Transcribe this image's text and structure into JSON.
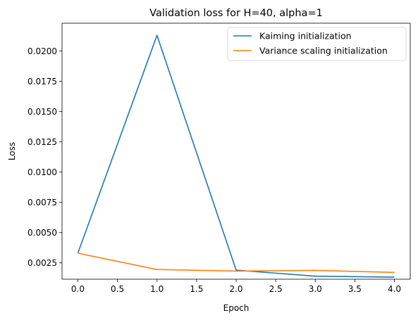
{
  "chart_data": {
    "type": "line",
    "title": "Validation loss for H=40, alpha=1",
    "xlabel": "Epoch",
    "ylabel": "Loss",
    "x": [
      0,
      1,
      2,
      3,
      4
    ],
    "xlim": [
      -0.2,
      4.2
    ],
    "ylim": [
      0.00115,
      0.0223
    ],
    "xticks": [
      0.0,
      0.5,
      1.0,
      1.5,
      2.0,
      2.5,
      3.0,
      3.5,
      4.0
    ],
    "xtick_labels": [
      "0.0",
      "0.5",
      "1.0",
      "1.5",
      "2.0",
      "2.5",
      "3.0",
      "3.5",
      "4.0"
    ],
    "yticks": [
      0.0025,
      0.005,
      0.0075,
      0.01,
      0.0125,
      0.015,
      0.0175,
      0.02
    ],
    "ytick_labels": [
      "0.0025",
      "0.0050",
      "0.0075",
      "0.0100",
      "0.0125",
      "0.0150",
      "0.0175",
      "0.0200"
    ],
    "grid": false,
    "legend_position": "top-right",
    "series": [
      {
        "name": "Kaiming initialization",
        "color": "#1f77b4",
        "values": [
          0.0033,
          0.0213,
          0.0019,
          0.0014,
          0.00132
        ]
      },
      {
        "name": "Variance scaling initialization",
        "color": "#ff7f0e",
        "values": [
          0.0033,
          0.00195,
          0.00182,
          0.00188,
          0.00171
        ]
      }
    ]
  }
}
